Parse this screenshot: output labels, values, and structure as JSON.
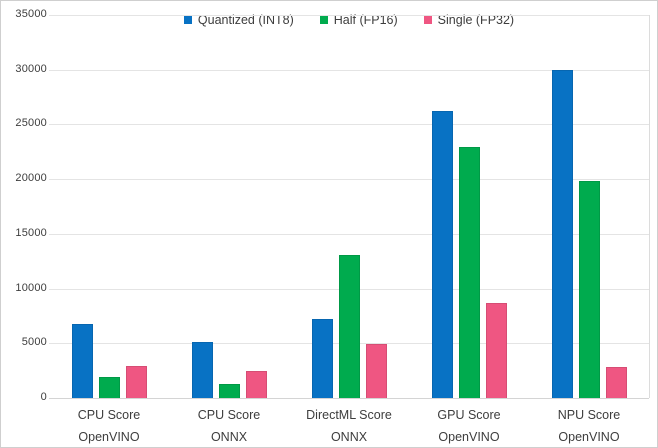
{
  "chart_data": {
    "type": "bar",
    "title": "",
    "xlabel": "",
    "ylabel": "",
    "ylim": [
      0,
      35000
    ],
    "ytick_step": 5000,
    "ytick_labels": [
      "0",
      "5000",
      "10000",
      "15000",
      "20000",
      "25000",
      "30000",
      "35000"
    ],
    "grid": true,
    "legend_position": "top-center",
    "categories": [
      "CPU Score\nOpenVINO",
      "CPU Score\nONNX",
      "DirectML Score\nONNX",
      "GPU Score\nOpenVINO",
      "NPU Score\nOpenVINO"
    ],
    "series": [
      {
        "name": "Quantized (INT8)",
        "color": "#0872c4",
        "values": [
          6800,
          5100,
          7200,
          26200,
          30000
        ]
      },
      {
        "name": "Half (FP16)",
        "color": "#00ab4e",
        "values": [
          1900,
          1300,
          13100,
          22900,
          19800
        ]
      },
      {
        "name": "Single (FP32)",
        "color": "#ef5682",
        "values": [
          2900,
          2500,
          4900,
          8700,
          2800
        ]
      }
    ]
  },
  "colors": {
    "background": "#ffffff",
    "frame_border": "#cfcfcf",
    "gridline": "#e4e4e4",
    "axis_line": "#d4d4d4",
    "text": "#3d3d3d"
  }
}
